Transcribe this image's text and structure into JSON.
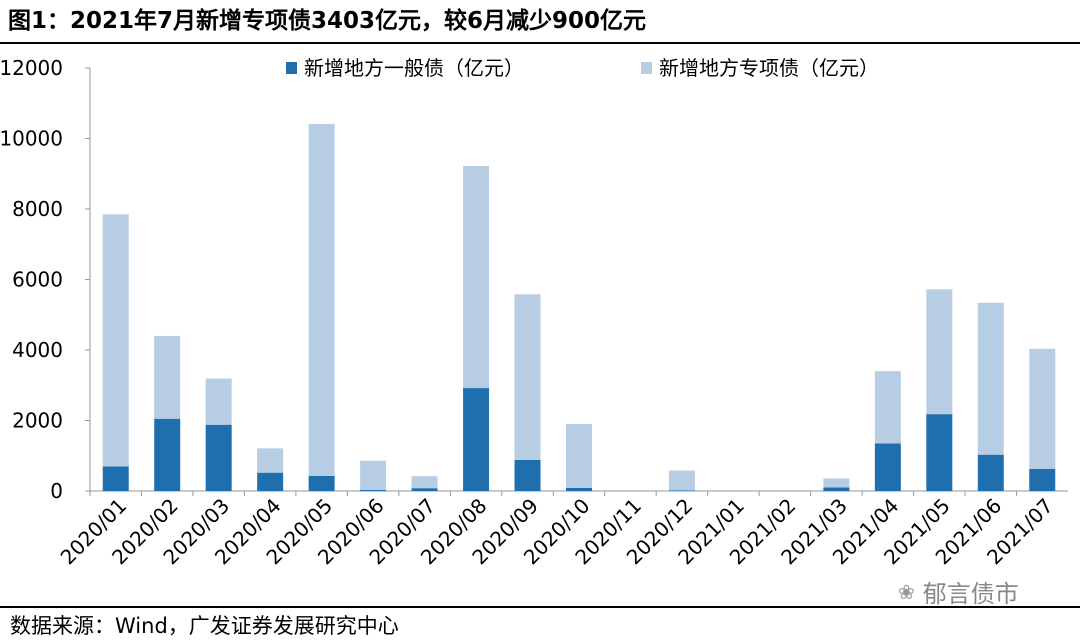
{
  "figure": {
    "title": "图1：2021年7月新增专项债3403亿元，较6月减少900亿元",
    "source": "数据来源：Wind，广发证券发展研究中心",
    "watermark": "郁言债市",
    "watermark_icon": "wechat-icon"
  },
  "colors": {
    "general_bond": "#1F6FAE",
    "special_bond": "#B7CDE4"
  },
  "chart_data": {
    "type": "bar",
    "stacked": true,
    "categories": [
      "2020/01",
      "2020/02",
      "2020/03",
      "2020/04",
      "2020/05",
      "2020/06",
      "2020/07",
      "2020/08",
      "2020/09",
      "2020/10",
      "2020/11",
      "2020/12",
      "2021/01",
      "2021/02",
      "2021/03",
      "2021/04",
      "2021/05",
      "2021/06",
      "2021/07"
    ],
    "series": [
      {
        "name": "新增地方一般债（亿元）",
        "values": [
          700,
          2050,
          1880,
          520,
          430,
          30,
          80,
          2920,
          880,
          90,
          0,
          20,
          0,
          0,
          100,
          1350,
          2180,
          1030,
          630
        ]
      },
      {
        "name": "新增地方专项债（亿元）",
        "values": [
          7150,
          2350,
          1310,
          690,
          9980,
          830,
          340,
          6300,
          4700,
          1810,
          0,
          560,
          0,
          0,
          260,
          2050,
          3540,
          4310,
          3403
        ]
      }
    ],
    "yticks": [
      "0",
      "2000",
      "4000",
      "6000",
      "8000",
      "10000",
      "12000"
    ],
    "ylim": [
      0,
      12000
    ],
    "xlabel": "",
    "ylabel": "",
    "grid": false,
    "legend_position": "top"
  }
}
